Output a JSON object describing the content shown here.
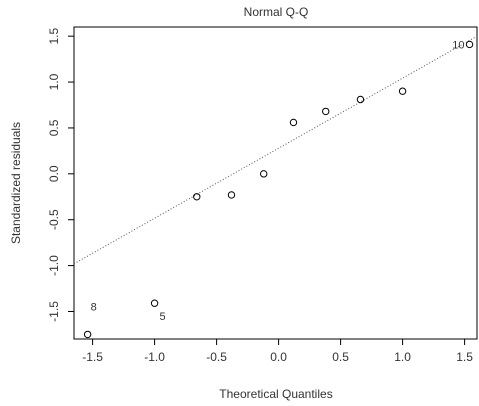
{
  "chart_data": {
    "type": "scatter",
    "title": "Normal Q-Q",
    "xlabel": "Theoretical Quantiles",
    "ylabel": "Standardized residuals",
    "xlim": [
      -1.65,
      1.6
    ],
    "ylim": [
      -1.8,
      1.6
    ],
    "x_ticks": [
      "-1.5",
      "-1.0",
      "-0.5",
      "0.0",
      "0.5",
      "1.0",
      "1.5"
    ],
    "y_ticks": [
      "-1.5",
      "-1.0",
      "-0.5",
      "0.0",
      "0.5",
      "1.0",
      "1.5"
    ],
    "grid": false,
    "points": [
      {
        "x": -1.54,
        "y": -1.75
      },
      {
        "x": -1.0,
        "y": -1.41
      },
      {
        "x": -0.66,
        "y": -0.25
      },
      {
        "x": -0.38,
        "y": -0.23
      },
      {
        "x": -0.12,
        "y": 0.0
      },
      {
        "x": 0.12,
        "y": 0.56
      },
      {
        "x": 0.38,
        "y": 0.68
      },
      {
        "x": 0.66,
        "y": 0.81
      },
      {
        "x": 1.0,
        "y": 0.9
      },
      {
        "x": 1.54,
        "y": 1.41
      }
    ],
    "point_labels": [
      {
        "text": "8",
        "x": -1.54,
        "y": -1.75
      },
      {
        "text": "5",
        "x": -1.0,
        "y": -1.41
      },
      {
        "text": "10",
        "x": 1.54,
        "y": 1.41
      }
    ],
    "reference_line": {
      "x": [
        -1.65,
        1.6
      ],
      "y": [
        -0.98,
        1.5
      ]
    }
  }
}
